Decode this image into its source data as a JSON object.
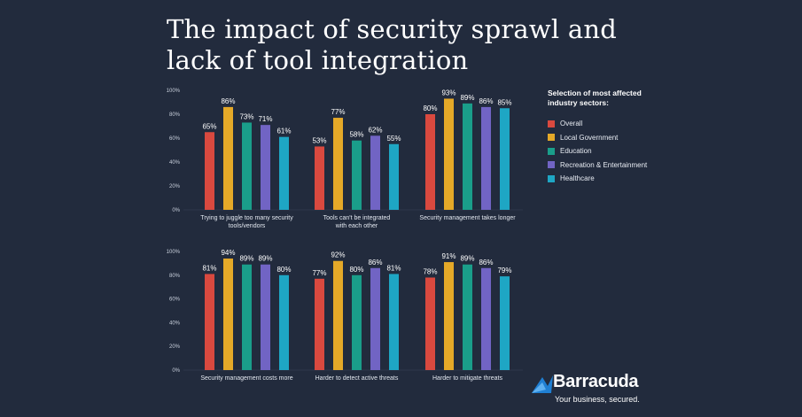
{
  "title": {
    "line1": "The impact of security sprawl and",
    "line2": "lack of tool integration"
  },
  "legend": {
    "title": "Selection of most affected industry sectors:",
    "items": [
      {
        "label": "Overall",
        "color": "#d9493f"
      },
      {
        "label": "Local Government",
        "color": "#e5a928"
      },
      {
        "label": "Education",
        "color": "#1a9e8a"
      },
      {
        "label": "Recreation & Entertainment",
        "color": "#7164c4"
      },
      {
        "label": "Healthcare",
        "color": "#1ea6c4"
      }
    ]
  },
  "chart_data": [
    {
      "type": "bar",
      "ylim": [
        0,
        100
      ],
      "yticks": [
        "0%",
        "20%",
        "40%",
        "60%",
        "80%",
        "100%"
      ],
      "grid": false,
      "legend_placement": "right",
      "categories": [
        [
          "Trying to juggle too many security",
          "tools/vendors"
        ],
        [
          "Tools can't be integrated",
          "with each other"
        ],
        [
          "Security management takes longer"
        ]
      ],
      "series": [
        {
          "name": "Overall",
          "values": [
            65,
            53,
            80
          ]
        },
        {
          "name": "Local Government",
          "values": [
            86,
            77,
            93
          ]
        },
        {
          "name": "Education",
          "values": [
            73,
            58,
            89
          ]
        },
        {
          "name": "Recreation & Entertainment",
          "values": [
            71,
            62,
            86
          ]
        },
        {
          "name": "Healthcare",
          "values": [
            61,
            55,
            85
          ]
        }
      ]
    },
    {
      "type": "bar",
      "ylim": [
        0,
        100
      ],
      "yticks": [
        "0%",
        "20%",
        "40%",
        "60%",
        "80%",
        "100%"
      ],
      "grid": false,
      "legend_placement": "right",
      "categories": [
        [
          "Security management costs more"
        ],
        [
          "Harder to detect active threats"
        ],
        [
          "Harder to mitigate threats"
        ]
      ],
      "series": [
        {
          "name": "Overall",
          "values": [
            81,
            77,
            78
          ]
        },
        {
          "name": "Local Government",
          "values": [
            94,
            92,
            91
          ]
        },
        {
          "name": "Education",
          "values": [
            89,
            80,
            89
          ]
        },
        {
          "name": "Recreation & Entertainment",
          "values": [
            89,
            86,
            86
          ]
        },
        {
          "name": "Healthcare",
          "values": [
            80,
            81,
            79
          ]
        }
      ]
    }
  ],
  "logo": {
    "name": "Barracuda",
    "tagline": "Your business, secured.",
    "color": "#1f7fd3"
  }
}
